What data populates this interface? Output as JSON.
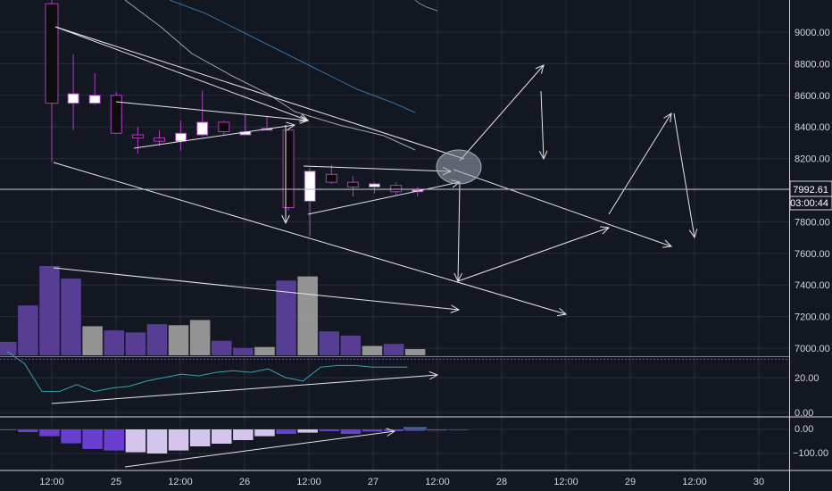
{
  "theme": {
    "background": "#131722",
    "grid": "#2a2e39",
    "axis_text": "#d1d4dc",
    "candle_up_fill": "#ffffff",
    "candle_down_fill": "#0c0c0c",
    "candle_border": "#b03cc0",
    "volume_up": "#9b9b9b",
    "volume_down": "#5b3f9a",
    "histogram_light": "#d4c5ec",
    "histogram_dark": "#6a3fd0",
    "drawing_color": "#e6e6e6",
    "ma_line": "#c8c8c8",
    "ma_line_2": "#3e7ab0"
  },
  "price_axis": {
    "ticks": [
      "9000.00",
      "8800.00",
      "8600.00",
      "8400.00",
      "8200.00",
      "7800.00",
      "7600.00",
      "7400.00",
      "7200.00",
      "7000.00"
    ],
    "current_price": "7992.61",
    "countdown": "03:00:44"
  },
  "oscillator_axis": {
    "ticks": [
      "20.00",
      "0.00"
    ]
  },
  "histogram_axis": {
    "ticks": [
      "0.00",
      "−100.00"
    ]
  },
  "time_axis": {
    "ticks": [
      "12:00",
      "25",
      "12:00",
      "26",
      "12:00",
      "27",
      "12:00",
      "28",
      "12:00",
      "29",
      "12:00",
      "30"
    ]
  },
  "chart_data": {
    "type": "candlestick",
    "symbol": "",
    "candles": [
      {
        "open": 9180,
        "high": 9300,
        "low": 8180,
        "close": 8550
      },
      {
        "open": 8550,
        "high": 8860,
        "low": 8380,
        "close": 8610
      },
      {
        "open": 8550,
        "high": 8740,
        "low": 8540,
        "close": 8600
      },
      {
        "open": 8600,
        "high": 8620,
        "low": 8360,
        "close": 8360
      },
      {
        "open": 8350,
        "high": 8400,
        "low": 8230,
        "close": 8330
      },
      {
        "open": 8330,
        "high": 8380,
        "low": 8280,
        "close": 8310
      },
      {
        "open": 8310,
        "high": 8440,
        "low": 8250,
        "close": 8360
      },
      {
        "open": 8350,
        "high": 8630,
        "low": 8340,
        "close": 8430
      },
      {
        "open": 8430,
        "high": 8440,
        "low": 8350,
        "close": 8370
      },
      {
        "open": 8350,
        "high": 8480,
        "low": 8350,
        "close": 8370
      },
      {
        "open": 8380,
        "high": 8470,
        "low": 8380,
        "close": 8390
      },
      {
        "open": 8380,
        "high": 8380,
        "low": 7870,
        "close": 7890
      },
      {
        "open": 7930,
        "high": 8140,
        "low": 7710,
        "close": 8120
      },
      {
        "open": 8100,
        "high": 8160,
        "low": 8040,
        "close": 8050
      },
      {
        "open": 8050,
        "high": 8090,
        "low": 7960,
        "close": 8020
      },
      {
        "open": 8020,
        "high": 8050,
        "low": 7980,
        "close": 8040
      },
      {
        "open": 8030,
        "high": 8050,
        "low": 7970,
        "close": 7990
      },
      {
        "open": 7990,
        "high": 8020,
        "low": 7960,
        "close": 8000
      }
    ],
    "volume": [
      {
        "value": 65,
        "up": false
      },
      {
        "value": 240,
        "up": false
      },
      {
        "value": 430,
        "up": false
      },
      {
        "value": 370,
        "up": false
      },
      {
        "value": 140,
        "up": true
      },
      {
        "value": 120,
        "up": false
      },
      {
        "value": 110,
        "up": false
      },
      {
        "value": 150,
        "up": false
      },
      {
        "value": 145,
        "up": true
      },
      {
        "value": 170,
        "up": true
      },
      {
        "value": 70,
        "up": false
      },
      {
        "value": 35,
        "up": false
      },
      {
        "value": 40,
        "up": true
      },
      {
        "value": 360,
        "up": false
      },
      {
        "value": 380,
        "up": true
      },
      {
        "value": 115,
        "up": false
      },
      {
        "value": 95,
        "up": false
      },
      {
        "value": 45,
        "up": true
      },
      {
        "value": 55,
        "up": false
      },
      {
        "value": 30,
        "up": true
      }
    ],
    "oscillator": [
      35,
      28,
      12,
      12,
      16,
      12,
      14,
      15,
      18,
      20,
      22,
      21,
      23,
      24,
      23,
      25,
      20,
      18,
      26,
      27,
      27,
      26,
      26,
      26
    ],
    "histogram": [
      -5,
      -15,
      -38,
      -78,
      -110,
      -118,
      -128,
      -135,
      -118,
      -95,
      -80,
      -60,
      -38,
      -25,
      -18,
      -10,
      -25,
      -12,
      -10,
      -8,
      -6,
      -4
    ],
    "macd_signal_value": 3,
    "ma_lines": [
      {
        "name": "",
        "points": [
          [
            9600,
            0
          ],
          [
            9050,
            6
          ],
          [
            8800,
            8
          ],
          [
            8610,
            12
          ]
        ]
      },
      {
        "name": "",
        "points": [
          [
            9450,
            4
          ],
          [
            9200,
            7
          ],
          [
            8900,
            10
          ],
          [
            8700,
            15
          ]
        ]
      }
    ]
  }
}
